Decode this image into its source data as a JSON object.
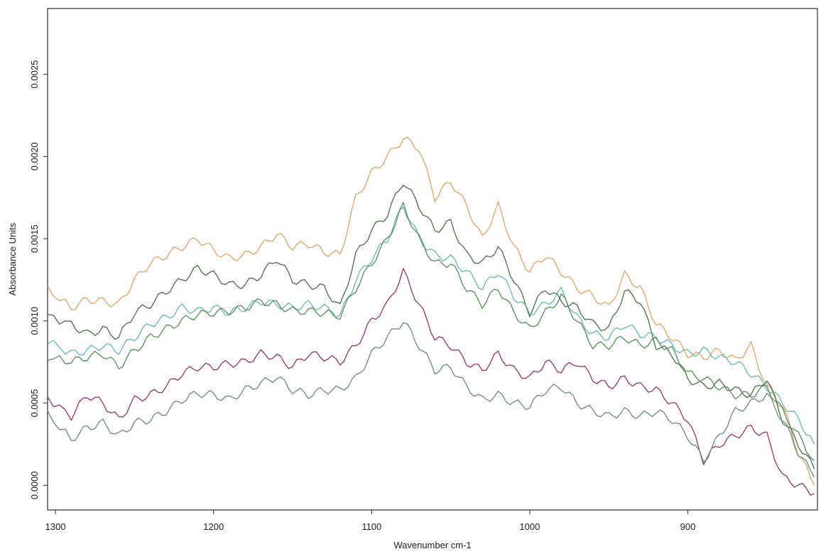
{
  "chart_data": {
    "type": "line",
    "title": "",
    "xlabel": "Wavenumber cm-1",
    "ylabel": "Absorbance Units",
    "xlim": [
      1305,
      818
    ],
    "ylim": [
      -0.00015,
      0.0029
    ],
    "x_reversed": true,
    "grid": false,
    "legend": "none",
    "x_ticks": [
      1300,
      1200,
      1100,
      1000,
      900
    ],
    "x_tick_labels": [
      "1300",
      "1200",
      "1100",
      "1000",
      "900"
    ],
    "y_ticks": [
      0.0,
      0.0005,
      0.001,
      0.0015,
      0.002,
      0.0025
    ],
    "y_tick_labels": [
      "0.0000",
      "0.0005",
      "0.0010",
      "0.0015",
      "0.0020",
      "0.0025"
    ],
    "x": [
      1305,
      1290,
      1280,
      1270,
      1260,
      1250,
      1240,
      1230,
      1220,
      1210,
      1200,
      1190,
      1180,
      1170,
      1160,
      1150,
      1140,
      1130,
      1120,
      1110,
      1100,
      1090,
      1080,
      1070,
      1060,
      1050,
      1040,
      1030,
      1020,
      1010,
      1000,
      990,
      980,
      970,
      960,
      950,
      940,
      930,
      920,
      910,
      900,
      890,
      880,
      870,
      860,
      850,
      840,
      830,
      820
    ],
    "series": [
      {
        "color": "#d9a66b",
        "values": [
          0.00119,
          0.00108,
          0.00113,
          0.00112,
          0.0011,
          0.00125,
          0.00135,
          0.0014,
          0.00145,
          0.0015,
          0.00143,
          0.00138,
          0.0014,
          0.00145,
          0.00153,
          0.00145,
          0.00147,
          0.00142,
          0.0014,
          0.00175,
          0.0019,
          0.002,
          0.00211,
          0.00205,
          0.00175,
          0.00185,
          0.0017,
          0.0015,
          0.0017,
          0.00145,
          0.0013,
          0.0014,
          0.0013,
          0.0012,
          0.00115,
          0.00108,
          0.00128,
          0.0012,
          0.00098,
          0.0009,
          0.0008,
          0.00078,
          0.00082,
          0.00076,
          0.00085,
          0.0006,
          0.00048,
          0.0002,
          0.0
        ]
      },
      {
        "color": "#4e6b4b",
        "values": [
          0.00103,
          0.00098,
          0.00092,
          0.00095,
          0.0009,
          0.00105,
          0.0011,
          0.00118,
          0.00125,
          0.00132,
          0.00128,
          0.00122,
          0.00122,
          0.00128,
          0.00138,
          0.00125,
          0.00122,
          0.0012,
          0.00108,
          0.0014,
          0.00155,
          0.00165,
          0.00185,
          0.0017,
          0.00155,
          0.0016,
          0.0014,
          0.00135,
          0.00145,
          0.00125,
          0.00105,
          0.0012,
          0.00112,
          0.00108,
          0.00098,
          0.00095,
          0.00118,
          0.00112,
          0.00085,
          0.0008,
          0.00065,
          0.0006,
          0.00062,
          0.00058,
          0.00055,
          0.00065,
          0.0004,
          0.00025,
          0.0001
        ]
      },
      {
        "color": "#6ab5b5",
        "values": [
          0.00088,
          0.0008,
          0.00082,
          0.00085,
          0.00082,
          0.0009,
          0.00098,
          0.00102,
          0.00108,
          0.00106,
          0.00108,
          0.00105,
          0.00108,
          0.00112,
          0.0011,
          0.00108,
          0.0011,
          0.00108,
          0.00103,
          0.00125,
          0.00138,
          0.0015,
          0.0017,
          0.0015,
          0.0014,
          0.00138,
          0.0013,
          0.0012,
          0.0013,
          0.00115,
          0.00105,
          0.0011,
          0.00118,
          0.00102,
          0.00092,
          0.0009,
          0.00098,
          0.00092,
          0.0009,
          0.00085,
          0.0008,
          0.00082,
          0.00078,
          0.00075,
          0.00068,
          0.0006,
          0.0005,
          0.0004,
          0.00025
        ]
      },
      {
        "color": "#5a8a5a",
        "values": [
          0.00078,
          0.00075,
          0.00078,
          0.0008,
          0.00072,
          0.00082,
          0.0009,
          0.00095,
          0.001,
          0.00104,
          0.00105,
          0.00106,
          0.00108,
          0.00112,
          0.0011,
          0.00106,
          0.00106,
          0.00105,
          0.00103,
          0.0012,
          0.00135,
          0.0015,
          0.0017,
          0.0015,
          0.00135,
          0.00135,
          0.0012,
          0.0011,
          0.0012,
          0.00105,
          0.00095,
          0.00105,
          0.00115,
          0.001,
          0.00085,
          0.00085,
          0.0009,
          0.00085,
          0.00088,
          0.00082,
          0.00068,
          0.00065,
          0.0006,
          0.00055,
          0.00055,
          0.0006,
          0.00045,
          0.0003,
          0.00015
        ]
      },
      {
        "color": "#8a3a6a",
        "values": [
          0.00053,
          0.00042,
          0.00055,
          0.0005,
          0.0004,
          0.00052,
          0.00055,
          0.0006,
          0.00068,
          0.00072,
          0.00072,
          0.00074,
          0.00075,
          0.0008,
          0.00078,
          0.00072,
          0.0008,
          0.00078,
          0.00075,
          0.00085,
          0.001,
          0.0011,
          0.0013,
          0.0011,
          0.0009,
          0.00085,
          0.00075,
          0.0007,
          0.0008,
          0.0007,
          0.00065,
          0.00075,
          0.0007,
          0.00075,
          0.00065,
          0.0006,
          0.00065,
          0.0006,
          0.00058,
          0.0005,
          0.0004,
          0.00015,
          0.00025,
          0.0003,
          0.00035,
          0.0003,
          5e-05,
          0.0,
          -5e-05
        ]
      },
      {
        "color": "#6b8a80",
        "values": [
          0.00043,
          0.00028,
          0.00035,
          0.00038,
          0.0003,
          0.00038,
          0.0004,
          0.00045,
          0.00052,
          0.00056,
          0.00055,
          0.00052,
          0.00058,
          0.00062,
          0.00066,
          0.00058,
          0.00055,
          0.00058,
          0.00058,
          0.00065,
          0.0008,
          0.0009,
          0.001,
          0.00085,
          0.0007,
          0.00072,
          0.0006,
          0.00052,
          0.00055,
          0.0005,
          0.00048,
          0.00058,
          0.0006,
          0.0005,
          0.00045,
          0.00042,
          0.00045,
          0.00042,
          0.00045,
          0.0004,
          0.0003,
          0.00015,
          0.0003,
          0.00045,
          0.0005,
          0.00055,
          0.0004,
          0.0002,
          5e-05
        ]
      }
    ]
  }
}
